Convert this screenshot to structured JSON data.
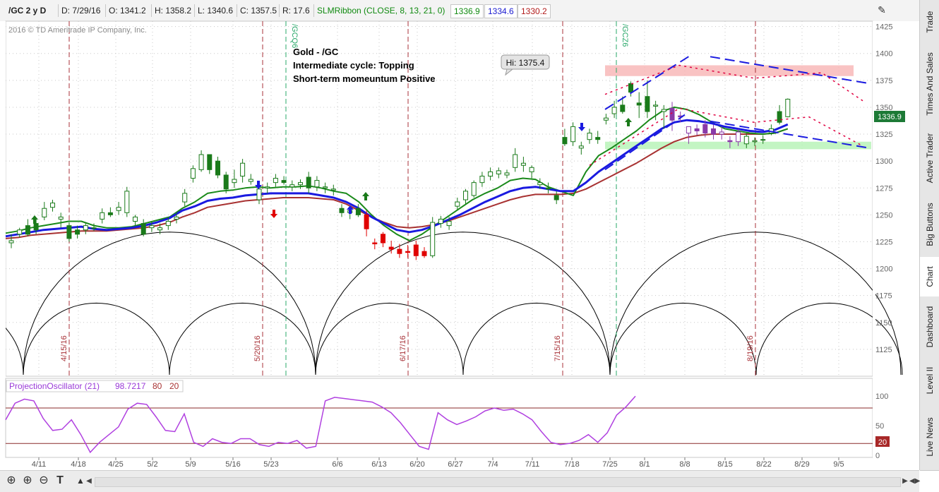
{
  "header": {
    "symbol": "/GC 2 y D",
    "date": "D: 7/29/16",
    "open": "O: 1341.2",
    "high": "H: 1358.2",
    "low": "L: 1340.6",
    "close": "C: 1357.5",
    "range": "R: 17.6",
    "study": "SLMRibbon (CLOSE, 8, 13, 21, 0)",
    "ribbon_fast": "1336.9",
    "ribbon_mid": "1334.6",
    "ribbon_slow": "1330.2"
  },
  "copyright": "2016 © TD Ameritrade IP Company, Inc.",
  "annotation_lines": [
    "Gold - /GC",
    "Intermediate cycle: Topping",
    "Short-term momeuntum Positive"
  ],
  "high_callout": "Hi: 1375.4",
  "price_marker": "1336.9",
  "oscillator_marker": "20",
  "oscillator": {
    "study": "ProjectionOscillator (21)",
    "value": "98.7217",
    "upper": "80",
    "lower": "20"
  },
  "sidebar_tabs": [
    "Trade",
    "Times And Sales",
    "Active Trader",
    "Big Buttons",
    "Chart",
    "Dashboard",
    "Level II",
    "Live News"
  ],
  "colors": {
    "ribbon_fast": "#1a8a1a",
    "ribbon_mid": "#1a1ae0",
    "ribbon_slow": "#a83232",
    "cycle_line": "#a83238",
    "contract_line": "#2aa86a",
    "resistance_zone": "#f7b4b4",
    "support_zone": "#b4f2b4",
    "oscillator_line": "#b040e0"
  },
  "icons": [
    "crosshair-icon",
    "zoom-in-icon",
    "zoom-out-icon",
    "text-icon",
    "drawing-icon",
    "collapse-icon"
  ],
  "chart_data": {
    "type": "candlestick",
    "x_tick_labels": [
      "4/11",
      "4/18",
      "4/25",
      "5/2",
      "5/9",
      "5/16",
      "5/23",
      "6/6",
      "6/13",
      "6/20",
      "6/27",
      "7/4",
      "7/11",
      "7/18",
      "7/25",
      "8/1",
      "8/8",
      "8/15",
      "8/22",
      "8/29",
      "9/5"
    ],
    "y_ticks": [
      1125,
      1150,
      1175,
      1200,
      1225,
      1250,
      1275,
      1300,
      1325,
      1350,
      1375,
      1400,
      1425
    ],
    "ylim": [
      1100,
      1430
    ],
    "cycle_dates": [
      "4/15/16",
      "5/20/16",
      "6/17/16",
      "7/15/16",
      "8/19/16"
    ],
    "contract_labels": [
      "/GCQ6",
      "/GCZ6"
    ],
    "candles": [
      {
        "o": 1224,
        "h": 1232,
        "l": 1219,
        "c": 1226
      },
      {
        "o": 1232,
        "h": 1238,
        "l": 1229,
        "c": 1236
      },
      {
        "o": 1240,
        "h": 1246,
        "l": 1230,
        "c": 1232
      },
      {
        "o": 1242,
        "h": 1246,
        "l": 1232,
        "c": 1236
      },
      {
        "o": 1248,
        "h": 1262,
        "l": 1245,
        "c": 1256
      },
      {
        "o": 1257,
        "h": 1264,
        "l": 1253,
        "c": 1261
      },
      {
        "o": 1246,
        "h": 1252,
        "l": 1238,
        "c": 1248
      },
      {
        "o": 1240,
        "h": 1243,
        "l": 1225,
        "c": 1228
      },
      {
        "o": 1236,
        "h": 1240,
        "l": 1228,
        "c": 1232
      },
      {
        "o": 1236,
        "h": 1243,
        "l": 1232,
        "c": 1240
      },
      {
        "o": 1238,
        "h": 1242,
        "l": 1235,
        "c": 1238
      },
      {
        "o": 1246,
        "h": 1256,
        "l": 1242,
        "c": 1252
      },
      {
        "o": 1252,
        "h": 1257,
        "l": 1248,
        "c": 1250
      },
      {
        "o": 1254,
        "h": 1262,
        "l": 1250,
        "c": 1257
      },
      {
        "o": 1252,
        "h": 1276,
        "l": 1248,
        "c": 1272
      },
      {
        "o": 1244,
        "h": 1250,
        "l": 1240,
        "c": 1248
      },
      {
        "o": 1242,
        "h": 1246,
        "l": 1230,
        "c": 1232
      },
      {
        "o": 1238,
        "h": 1244,
        "l": 1234,
        "c": 1240
      },
      {
        "o": 1236,
        "h": 1242,
        "l": 1232,
        "c": 1238
      },
      {
        "o": 1240,
        "h": 1248,
        "l": 1236,
        "c": 1244
      },
      {
        "o": 1246,
        "h": 1252,
        "l": 1242,
        "c": 1248
      },
      {
        "o": 1262,
        "h": 1274,
        "l": 1258,
        "c": 1270
      },
      {
        "o": 1284,
        "h": 1296,
        "l": 1280,
        "c": 1293
      },
      {
        "o": 1292,
        "h": 1310,
        "l": 1290,
        "c": 1306
      },
      {
        "o": 1306,
        "h": 1306,
        "l": 1288,
        "c": 1292
      },
      {
        "o": 1300,
        "h": 1304,
        "l": 1284,
        "c": 1287
      },
      {
        "o": 1287,
        "h": 1290,
        "l": 1270,
        "c": 1274
      },
      {
        "o": 1280,
        "h": 1292,
        "l": 1275,
        "c": 1283
      },
      {
        "o": 1286,
        "h": 1302,
        "l": 1280,
        "c": 1298
      },
      {
        "o": 1281,
        "h": 1288,
        "l": 1278,
        "c": 1283
      },
      {
        "o": 1264,
        "h": 1278,
        "l": 1260,
        "c": 1274
      },
      {
        "o": 1275,
        "h": 1280,
        "l": 1270,
        "c": 1276
      },
      {
        "o": 1280,
        "h": 1288,
        "l": 1276,
        "c": 1284
      },
      {
        "o": 1282,
        "h": 1286,
        "l": 1278,
        "c": 1280
      },
      {
        "o": 1276,
        "h": 1282,
        "l": 1272,
        "c": 1278
      },
      {
        "o": 1278,
        "h": 1283,
        "l": 1274,
        "c": 1280
      },
      {
        "o": 1285,
        "h": 1290,
        "l": 1270,
        "c": 1275
      },
      {
        "o": 1276,
        "h": 1286,
        "l": 1272,
        "c": 1282
      },
      {
        "o": 1275,
        "h": 1280,
        "l": 1270,
        "c": 1276
      },
      {
        "o": 1273,
        "h": 1278,
        "l": 1268,
        "c": 1274
      },
      {
        "o": 1256,
        "h": 1260,
        "l": 1248,
        "c": 1252
      },
      {
        "o": 1252,
        "h": 1258,
        "l": 1246,
        "c": 1254
      },
      {
        "o": 1256,
        "h": 1260,
        "l": 1248,
        "c": 1250
      },
      {
        "o": 1250,
        "h": 1254,
        "l": 1230,
        "c": 1237
      },
      {
        "o": 1224,
        "h": 1228,
        "l": 1218,
        "c": 1223
      },
      {
        "o": 1232,
        "h": 1234,
        "l": 1220,
        "c": 1224
      },
      {
        "o": 1220,
        "h": 1226,
        "l": 1214,
        "c": 1218
      },
      {
        "o": 1218,
        "h": 1223,
        "l": 1210,
        "c": 1214
      },
      {
        "o": 1216,
        "h": 1222,
        "l": 1210,
        "c": 1215
      },
      {
        "o": 1222,
        "h": 1226,
        "l": 1208,
        "c": 1212
      },
      {
        "o": 1216,
        "h": 1220,
        "l": 1210,
        "c": 1212
      },
      {
        "o": 1212,
        "h": 1248,
        "l": 1210,
        "c": 1243
      },
      {
        "o": 1242,
        "h": 1249,
        "l": 1238,
        "c": 1246
      },
      {
        "o": 1240,
        "h": 1248,
        "l": 1236,
        "c": 1244
      },
      {
        "o": 1258,
        "h": 1266,
        "l": 1254,
        "c": 1262
      },
      {
        "o": 1264,
        "h": 1274,
        "l": 1260,
        "c": 1272
      },
      {
        "o": 1268,
        "h": 1282,
        "l": 1266,
        "c": 1280
      },
      {
        "o": 1280,
        "h": 1290,
        "l": 1276,
        "c": 1286
      },
      {
        "o": 1286,
        "h": 1294,
        "l": 1282,
        "c": 1290
      },
      {
        "o": 1288,
        "h": 1294,
        "l": 1284,
        "c": 1291
      },
      {
        "o": 1287,
        "h": 1292,
        "l": 1284,
        "c": 1289
      },
      {
        "o": 1294,
        "h": 1312,
        "l": 1290,
        "c": 1306
      },
      {
        "o": 1296,
        "h": 1304,
        "l": 1290,
        "c": 1298
      },
      {
        "o": 1290,
        "h": 1296,
        "l": 1284,
        "c": 1294
      },
      {
        "o": 1278,
        "h": 1284,
        "l": 1274,
        "c": 1280
      },
      {
        "o": 1275,
        "h": 1280,
        "l": 1270,
        "c": 1274
      },
      {
        "o": 1268,
        "h": 1272,
        "l": 1260,
        "c": 1264
      },
      {
        "o": 1322,
        "h": 1330,
        "l": 1314,
        "c": 1316
      },
      {
        "o": 1318,
        "h": 1336,
        "l": 1314,
        "c": 1332
      },
      {
        "o": 1312,
        "h": 1318,
        "l": 1306,
        "c": 1314
      },
      {
        "o": 1320,
        "h": 1330,
        "l": 1316,
        "c": 1326
      },
      {
        "o": 1322,
        "h": 1328,
        "l": 1316,
        "c": 1320
      },
      {
        "o": 1338,
        "h": 1344,
        "l": 1334,
        "c": 1340
      },
      {
        "o": 1344,
        "h": 1356,
        "l": 1340,
        "c": 1350
      },
      {
        "o": 1352,
        "h": 1360,
        "l": 1344,
        "c": 1346
      },
      {
        "o": 1372,
        "h": 1374,
        "l": 1360,
        "c": 1364
      },
      {
        "o": 1354,
        "h": 1364,
        "l": 1340,
        "c": 1352
      },
      {
        "o": 1360,
        "h": 1375,
        "l": 1340,
        "c": 1346
      },
      {
        "o": 1351,
        "h": 1356,
        "l": 1338,
        "c": 1352
      },
      {
        "o": 1346,
        "h": 1352,
        "l": 1330,
        "c": 1348
      },
      {
        "o": 1349,
        "h": 1355,
        "l": 1328,
        "c": 1338
      },
      {
        "o": 1342,
        "h": 1346,
        "l": 1336,
        "c": 1341
      },
      {
        "o": 1326,
        "h": 1330,
        "l": 1316,
        "c": 1332
      },
      {
        "o": 1330,
        "h": 1334,
        "l": 1324,
        "c": 1328
      },
      {
        "o": 1334,
        "h": 1338,
        "l": 1322,
        "c": 1326
      },
      {
        "o": 1330,
        "h": 1334,
        "l": 1320,
        "c": 1325
      },
      {
        "o": 1325,
        "h": 1332,
        "l": 1320,
        "c": 1327
      },
      {
        "o": 1319,
        "h": 1323,
        "l": 1312,
        "c": 1318
      },
      {
        "o": 1318,
        "h": 1330,
        "l": 1314,
        "c": 1327
      },
      {
        "o": 1316,
        "h": 1326,
        "l": 1312,
        "c": 1323
      },
      {
        "o": 1318,
        "h": 1322,
        "l": 1314,
        "c": 1319
      },
      {
        "o": 1320,
        "h": 1324,
        "l": 1316,
        "c": 1320
      },
      {
        "o": 1326,
        "h": 1334,
        "l": 1324,
        "c": 1330
      },
      {
        "o": 1346,
        "h": 1352,
        "l": 1334,
        "c": 1336
      },
      {
        "o": 1341.2,
        "h": 1358.2,
        "l": 1340.6,
        "c": 1357.5
      }
    ],
    "ribbon_fast": [
      1233,
      1235,
      1238,
      1240,
      1242,
      1244,
      1244,
      1240,
      1238,
      1238,
      1239,
      1242,
      1245,
      1248,
      1256,
      1262,
      1270,
      1272,
      1273,
      1275,
      1276,
      1275,
      1276,
      1276,
      1277,
      1275,
      1272,
      1270,
      1262,
      1250,
      1240,
      1232,
      1226,
      1232,
      1240,
      1248,
      1256,
      1264,
      1270,
      1275,
      1282,
      1284,
      1283,
      1276,
      1272,
      1268,
      1290,
      1305,
      1312,
      1320,
      1328,
      1338,
      1346,
      1350,
      1348,
      1343,
      1336,
      1330,
      1328,
      1326,
      1325,
      1326,
      1330
    ],
    "ribbon_mid": [
      1230,
      1232,
      1234,
      1236,
      1237,
      1238,
      1239,
      1237,
      1236,
      1237,
      1238,
      1240,
      1243,
      1247,
      1254,
      1258,
      1263,
      1265,
      1266,
      1268,
      1269,
      1270,
      1270,
      1270,
      1270,
      1268,
      1266,
      1262,
      1256,
      1248,
      1242,
      1236,
      1234,
      1236,
      1240,
      1245,
      1250,
      1256,
      1262,
      1267,
      1272,
      1275,
      1276,
      1274,
      1272,
      1272,
      1280,
      1290,
      1298,
      1306,
      1314,
      1322,
      1330,
      1336,
      1338,
      1337,
      1335,
      1332,
      1330,
      1328,
      1327,
      1329,
      1334
    ],
    "ribbon_slow": [
      1228,
      1229,
      1231,
      1232,
      1233,
      1234,
      1235,
      1235,
      1235,
      1236,
      1237,
      1238,
      1240,
      1243,
      1248,
      1252,
      1257,
      1259,
      1261,
      1263,
      1264,
      1265,
      1266,
      1266,
      1266,
      1265,
      1264,
      1260,
      1254,
      1248,
      1243,
      1239,
      1238,
      1239,
      1241,
      1244,
      1248,
      1252,
      1256,
      1260,
      1264,
      1267,
      1269,
      1269,
      1269,
      1270,
      1274,
      1280,
      1286,
      1292,
      1298,
      1305,
      1312,
      1318,
      1322,
      1324,
      1325,
      1325,
      1325,
      1325,
      1325,
      1326,
      1330
    ],
    "oscillator_series": [
      {
        "name": "ProjectionOscillator (21)",
        "values": [
          60,
          88,
          95,
          92,
          62,
          42,
          44,
          60,
          35,
          5,
          22,
          35,
          48,
          78,
          88,
          86,
          65,
          42,
          40,
          70,
          22,
          15,
          28,
          22,
          20,
          28,
          28,
          18,
          15,
          22,
          20,
          25,
          12,
          15,
          92,
          98,
          96,
          94,
          92,
          90,
          82,
          72,
          55,
          35,
          15,
          10,
          72,
          60,
          52,
          58,
          65,
          75,
          80,
          76,
          78,
          70,
          60,
          40,
          22,
          18,
          20,
          25,
          35,
          22,
          38,
          68,
          82,
          100
        ]
      },
      {
        "name": "80",
        "values": [
          80
        ]
      },
      {
        "name": "20",
        "values": [
          20
        ]
      }
    ],
    "oscillator_ylim": [
      0,
      105
    ],
    "oscillator_ticks": [
      0,
      50,
      100
    ]
  }
}
